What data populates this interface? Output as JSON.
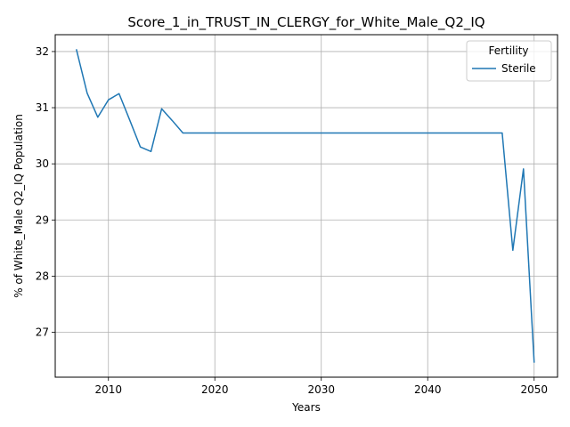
{
  "chart_data": {
    "type": "line",
    "title": "Score_1_in_TRUST_IN_CLERGY_for_White_Male_Q2_IQ",
    "xlabel": "Years",
    "ylabel": "% of White_Male Q2_IQ Population",
    "xlim": [
      2005,
      2052.2
    ],
    "ylim": [
      26.2,
      32.3
    ],
    "xticks": [
      2010,
      2020,
      2030,
      2040,
      2050
    ],
    "yticks": [
      27,
      28,
      29,
      30,
      31,
      32
    ],
    "grid": true,
    "legend": {
      "title": "Fertility",
      "placement": "top-right"
    },
    "series": [
      {
        "name": "Sterile",
        "color": "#1f77b4",
        "x": [
          2007,
          2008,
          2009,
          2010,
          2011,
          2012,
          2013,
          2014,
          2015,
          2016,
          2017,
          2018,
          2019,
          2020,
          2021,
          2022,
          2023,
          2024,
          2025,
          2026,
          2027,
          2028,
          2029,
          2030,
          2031,
          2032,
          2033,
          2034,
          2035,
          2036,
          2037,
          2038,
          2039,
          2040,
          2041,
          2042,
          2043,
          2044,
          2045,
          2046,
          2047,
          2048,
          2049,
          2050
        ],
        "y": [
          32.03,
          31.26,
          30.83,
          31.14,
          31.25,
          30.78,
          30.3,
          30.22,
          30.98,
          30.77,
          30.55,
          30.55,
          30.55,
          30.55,
          30.55,
          30.55,
          30.55,
          30.55,
          30.55,
          30.55,
          30.55,
          30.55,
          30.55,
          30.55,
          30.55,
          30.55,
          30.55,
          30.55,
          30.55,
          30.55,
          30.55,
          30.55,
          30.55,
          30.55,
          30.55,
          30.55,
          30.55,
          30.55,
          30.55,
          30.55,
          30.55,
          28.46,
          29.91,
          26.47
        ]
      }
    ]
  }
}
